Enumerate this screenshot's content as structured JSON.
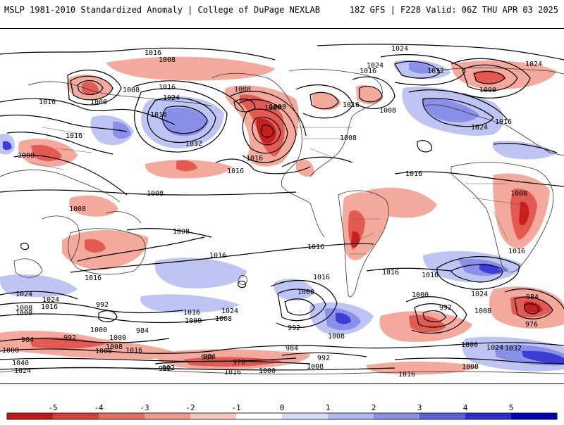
{
  "header": {
    "title_left": "MSLP 1981-2010 Standardized Anomaly | College of DuPage NEXLAB",
    "title_right": "18Z GFS | F228 Valid: 06Z THU APR 03 2025"
  },
  "colors": {
    "strong_negative": "#c81e1e",
    "moderate_negative": "#e35a52",
    "weak_negative": "#f3aa9c",
    "weak_positive": "#bfc5f2",
    "moderate_positive": "#8a90e8",
    "strong_positive": "#3d3dd6",
    "isobar": "#000000",
    "coastline": "#333333"
  },
  "colorbar": {
    "ticks": [
      "-5",
      "-4",
      "-3",
      "-2",
      "-1",
      "0",
      "1",
      "2",
      "3",
      "4",
      "5"
    ],
    "colors": [
      "#c21a1a",
      "#d8413c",
      "#e86e64",
      "#f29a8c",
      "#f9c8bd",
      "#ffffff",
      "#d8dbf7",
      "#b3b8ef",
      "#8b90e5",
      "#5e62d8",
      "#2e2ecc",
      "#0000bb"
    ]
  },
  "isobar_labels": [
    {
      "text": "1016"
    },
    {
      "text": "1008"
    },
    {
      "text": "1024"
    },
    {
      "text": "1024"
    },
    {
      "text": "1016"
    },
    {
      "text": "1032"
    },
    {
      "text": "1024"
    },
    {
      "text": "1008"
    },
    {
      "text": "1000"
    },
    {
      "text": "1016"
    },
    {
      "text": "1024"
    },
    {
      "text": "1016"
    },
    {
      "text": "1008"
    },
    {
      "text": "1000"
    },
    {
      "text": "1016"
    },
    {
      "text": "1000"
    },
    {
      "text": "1008"
    },
    {
      "text": "1016"
    },
    {
      "text": "1032"
    },
    {
      "text": "1016"
    },
    {
      "text": "1008"
    },
    {
      "text": "1016"
    },
    {
      "text": "1000"
    },
    {
      "text": "1024"
    },
    {
      "text": "1016"
    },
    {
      "text": "1016"
    },
    {
      "text": "1008"
    },
    {
      "text": "1008"
    },
    {
      "text": "1016"
    },
    {
      "text": "1008"
    },
    {
      "text": "1008"
    },
    {
      "text": "1016"
    },
    {
      "text": "1016"
    },
    {
      "text": "1016"
    },
    {
      "text": "1016"
    },
    {
      "text": "1016"
    },
    {
      "text": "1024"
    },
    {
      "text": "1016"
    },
    {
      "text": "1008"
    },
    {
      "text": "1000"
    },
    {
      "text": "992"
    },
    {
      "text": "1016"
    },
    {
      "text": "1024"
    },
    {
      "text": "1000"
    },
    {
      "text": "1008"
    },
    {
      "text": "1000"
    },
    {
      "text": "992"
    },
    {
      "text": "1008"
    },
    {
      "text": "1016"
    },
    {
      "text": "1000"
    },
    {
      "text": "984"
    },
    {
      "text": "992"
    },
    {
      "text": "1008"
    },
    {
      "text": "1024"
    },
    {
      "text": "984"
    },
    {
      "text": "976"
    },
    {
      "text": "984"
    },
    {
      "text": "992"
    },
    {
      "text": "1008"
    },
    {
      "text": "984"
    },
    {
      "text": "992"
    },
    {
      "text": "984"
    },
    {
      "text": "1000"
    },
    {
      "text": "1016"
    },
    {
      "text": "1008"
    },
    {
      "text": "1000"
    },
    {
      "text": "1040"
    },
    {
      "text": "1024"
    },
    {
      "text": "976"
    },
    {
      "text": "992"
    },
    {
      "text": "1016"
    },
    {
      "text": "1000"
    },
    {
      "text": "1008"
    },
    {
      "text": "992"
    },
    {
      "text": "1024"
    },
    {
      "text": "1016"
    },
    {
      "text": "1008"
    },
    {
      "text": "1000"
    },
    {
      "text": "1024"
    },
    {
      "text": "1032"
    },
    {
      "text": "1008"
    },
    {
      "text": "1016"
    },
    {
      "text": "1000"
    },
    {
      "text": "984"
    }
  ]
}
